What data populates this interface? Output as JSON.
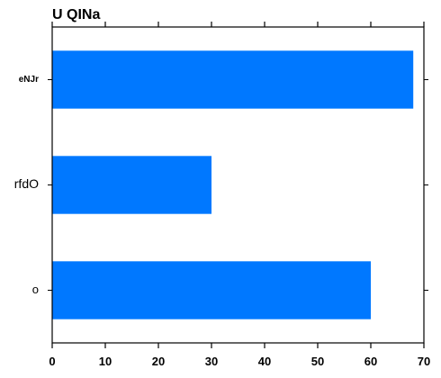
{
  "chart_data": {
    "type": "bar",
    "orientation": "horizontal",
    "title": "U QINa",
    "xlabel": "",
    "ylabel": "",
    "categories": [
      "o",
      "rfdO",
      "eNJr"
    ],
    "values": [
      60,
      30,
      68
    ],
    "xlim": [
      0,
      70
    ],
    "xticks": [
      "0",
      "10",
      "20",
      "30",
      "40",
      "50",
      "60",
      "70"
    ],
    "grid": false,
    "legend": "none",
    "bar_color": "#0078ff"
  }
}
